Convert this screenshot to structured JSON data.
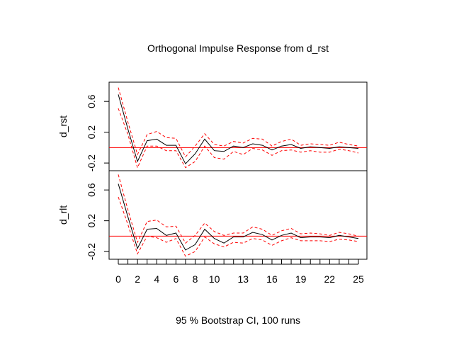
{
  "chart_data": {
    "type": "line",
    "title": "Orthogonal Impulse Response from d_rst",
    "xlabel": "95 % Bootstrap CI,  100 runs",
    "x": [
      0,
      1,
      2,
      3,
      4,
      5,
      6,
      7,
      8,
      9,
      10,
      11,
      12,
      13,
      14,
      15,
      16,
      17,
      18,
      19,
      20,
      21,
      22,
      23,
      24,
      25
    ],
    "x_tick_labels": [
      "0",
      "2",
      "4",
      "6",
      "8",
      "10",
      "13",
      "16",
      "19",
      "22",
      "25"
    ],
    "x_tick_values": [
      0,
      2,
      4,
      6,
      8,
      10,
      13,
      16,
      19,
      22,
      25
    ],
    "zero_line_color": "#ff0000",
    "ci_color": "#ff0000",
    "response_color": "#000000",
    "panels": [
      {
        "ylabel": "d_rst",
        "ylim": [
          -0.3,
          0.85
        ],
        "y_tick_values": [
          -0.2,
          0.2,
          0.6
        ],
        "y_tick_labels": [
          "-0.2",
          "0.2",
          "0.6"
        ],
        "series": [
          {
            "role": "response",
            "values": [
              0.69,
              0.24,
              -0.18,
              0.09,
              0.11,
              0.03,
              0.03,
              -0.21,
              -0.08,
              0.11,
              -0.04,
              -0.05,
              0.02,
              0.0,
              0.05,
              0.03,
              -0.03,
              0.02,
              0.04,
              -0.01,
              0.01,
              0.0,
              -0.01,
              0.01,
              0.0,
              -0.01
            ]
          },
          {
            "role": "upper",
            "values": [
              0.78,
              0.33,
              -0.09,
              0.17,
              0.21,
              0.13,
              0.12,
              -0.12,
              0.02,
              0.18,
              0.04,
              0.02,
              0.08,
              0.06,
              0.12,
              0.11,
              0.02,
              0.08,
              0.11,
              0.03,
              0.05,
              0.04,
              0.03,
              0.07,
              0.04,
              0.02
            ]
          },
          {
            "role": "lower",
            "values": [
              0.51,
              0.17,
              -0.26,
              0.02,
              0.02,
              -0.04,
              -0.04,
              -0.26,
              -0.18,
              0.02,
              -0.13,
              -0.15,
              -0.05,
              -0.09,
              -0.01,
              -0.03,
              -0.1,
              -0.04,
              -0.03,
              -0.06,
              -0.04,
              -0.06,
              -0.06,
              -0.02,
              -0.04,
              -0.07
            ]
          }
        ]
      },
      {
        "ylabel": "d_rlt",
        "ylim": [
          -0.3,
          0.85
        ],
        "y_tick_values": [
          -0.2,
          0.2,
          0.6
        ],
        "y_tick_labels": [
          "-0.2",
          "0.2",
          "0.6"
        ],
        "series": [
          {
            "role": "response",
            "values": [
              0.68,
              0.25,
              -0.16,
              0.09,
              0.1,
              0.01,
              0.04,
              -0.18,
              -0.11,
              0.09,
              -0.03,
              -0.09,
              -0.01,
              -0.01,
              0.05,
              0.02,
              -0.05,
              0.01,
              0.04,
              -0.02,
              -0.01,
              -0.01,
              -0.02,
              0.01,
              -0.01,
              -0.03
            ]
          },
          {
            "role": "upper",
            "values": [
              0.8,
              0.34,
              -0.08,
              0.19,
              0.21,
              0.12,
              0.13,
              -0.09,
              0.01,
              0.17,
              0.06,
              0.01,
              0.04,
              0.04,
              0.12,
              0.09,
              0.01,
              0.07,
              0.1,
              0.03,
              0.04,
              0.03,
              0.01,
              0.05,
              0.03,
              0.0
            ]
          },
          {
            "role": "lower",
            "values": [
              0.51,
              0.15,
              -0.23,
              0.0,
              -0.02,
              -0.08,
              -0.03,
              -0.26,
              -0.2,
              -0.01,
              -0.1,
              -0.14,
              -0.08,
              -0.09,
              -0.03,
              -0.05,
              -0.12,
              -0.06,
              -0.02,
              -0.06,
              -0.06,
              -0.06,
              -0.07,
              -0.04,
              -0.05,
              -0.07
            ]
          }
        ]
      }
    ]
  }
}
